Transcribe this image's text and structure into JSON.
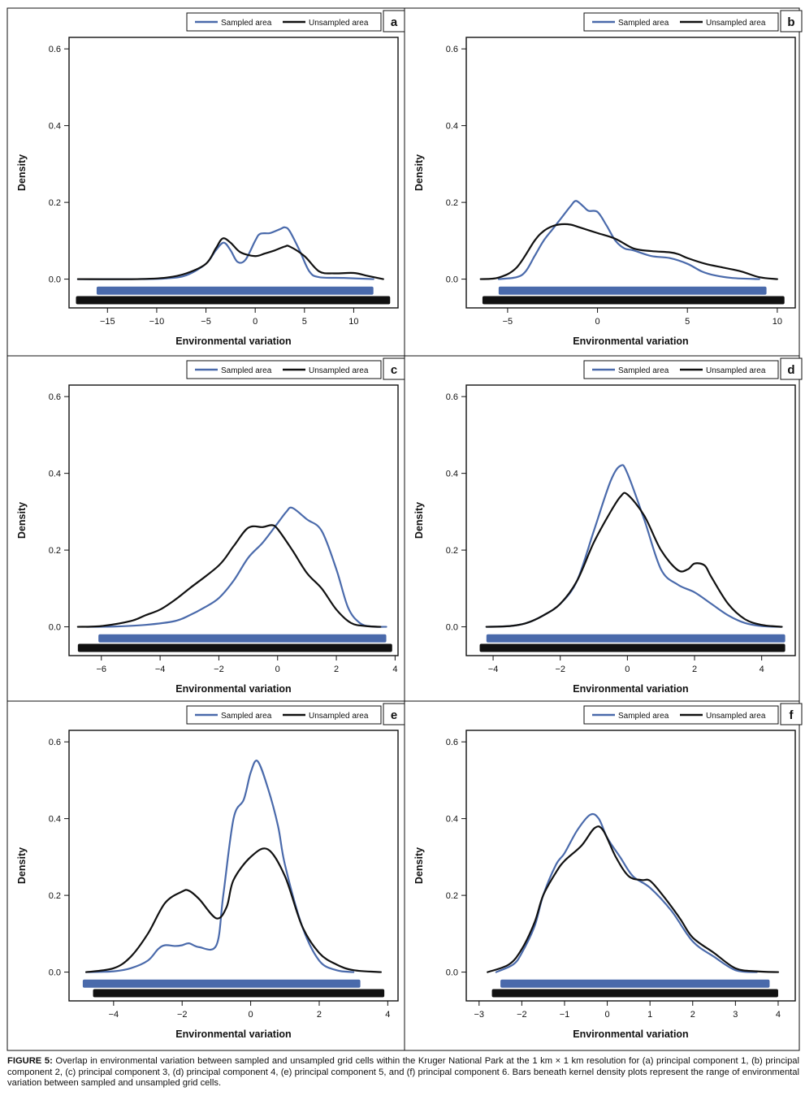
{
  "figure": {
    "caption_label": "FIGURE 5:",
    "caption_text": " Overlap in environmental variation between sampled and unsampled grid cells within the Kruger National Park at the 1 km × 1 km resolution for (a) principal component 1, (b) principal component 2, (c) principal component 3, (d) principal component 4, (e) principal component 5, and (f) principal component 6. Bars beneath kernel density plots represent the range of environmental variation between sampled and unsampled grid cells.",
    "colors": {
      "sampled": "#4a6aab",
      "unsampled": "#111111"
    }
  },
  "chart_data": [
    {
      "type": "line",
      "panel": "a",
      "xlabel": "Environmental variation",
      "ylabel": "Density",
      "xlim": [
        -18.9,
        14.5
      ],
      "ylim": [
        -0.075,
        0.63
      ],
      "xticks": [
        -15,
        -10,
        -5,
        0,
        5,
        10
      ],
      "yticks": [
        0.0,
        0.2,
        0.4,
        0.6
      ],
      "xtick_labels": [
        "−15",
        "−10",
        "−5",
        "0",
        "5",
        "10"
      ],
      "ytick_labels": [
        "0.0",
        "0.2",
        "0.4",
        "0.6"
      ],
      "legend": [
        "Sampled area",
        "Unsampled area"
      ],
      "series": [
        {
          "name": "Sampled area",
          "x": [
            -18,
            -12,
            -9,
            -7,
            -5,
            -4,
            -3.2,
            -2.5,
            -1.8,
            -1,
            0,
            0.5,
            1.5,
            2.5,
            3,
            3.5,
            4.5,
            5.5,
            6.5,
            9,
            12
          ],
          "y": [
            0,
            0,
            0.002,
            0.01,
            0.04,
            0.075,
            0.095,
            0.075,
            0.045,
            0.05,
            0.1,
            0.118,
            0.12,
            0.13,
            0.135,
            0.125,
            0.075,
            0.02,
            0.005,
            0.003,
            0
          ]
        },
        {
          "name": "Unsampled area",
          "x": [
            -18,
            -12,
            -9,
            -7,
            -5,
            -4,
            -3.3,
            -2.5,
            -1.5,
            0,
            1,
            2,
            3,
            3.5,
            5,
            6.5,
            8,
            10,
            11.5,
            13
          ],
          "y": [
            0,
            0,
            0.004,
            0.015,
            0.04,
            0.08,
            0.106,
            0.095,
            0.07,
            0.06,
            0.067,
            0.075,
            0.085,
            0.085,
            0.06,
            0.02,
            0.015,
            0.016,
            0.008,
            0
          ]
        }
      ],
      "ranges": [
        {
          "name": "Sampled area",
          "min": -16.1,
          "max": 12.0
        },
        {
          "name": "Unsampled area",
          "min": -18.2,
          "max": 13.7
        }
      ]
    },
    {
      "type": "line",
      "panel": "b",
      "xlabel": "Environmental variation",
      "ylabel": "Density",
      "xlim": [
        -7.3,
        11.0
      ],
      "ylim": [
        -0.075,
        0.63
      ],
      "xticks": [
        -5,
        0,
        5,
        10
      ],
      "yticks": [
        0.0,
        0.2,
        0.4,
        0.6
      ],
      "xtick_labels": [
        "−5",
        "0",
        "5",
        "10"
      ],
      "ytick_labels": [
        "0.0",
        "0.2",
        "0.4",
        "0.6"
      ],
      "legend": [
        "Sampled area",
        "Unsampled area"
      ],
      "series": [
        {
          "name": "Sampled area",
          "x": [
            -5.5,
            -4.5,
            -4,
            -3.5,
            -3,
            -2.5,
            -2,
            -1.5,
            -1.2,
            -0.8,
            -0.5,
            0,
            0.5,
            1,
            1.5,
            2,
            3,
            4,
            5,
            5.8,
            6.5,
            7.5,
            9
          ],
          "y": [
            0,
            0.005,
            0.02,
            0.06,
            0.1,
            0.13,
            0.16,
            0.19,
            0.204,
            0.19,
            0.178,
            0.175,
            0.14,
            0.1,
            0.08,
            0.075,
            0.06,
            0.055,
            0.04,
            0.02,
            0.01,
            0.003,
            0
          ]
        },
        {
          "name": "Unsampled area",
          "x": [
            -6.5,
            -5.5,
            -4.5,
            -3.5,
            -3,
            -2.5,
            -2,
            -1.5,
            -1,
            0,
            1,
            2,
            3,
            4,
            4.5,
            5,
            6,
            7,
            8,
            9,
            10
          ],
          "y": [
            0,
            0.004,
            0.03,
            0.1,
            0.125,
            0.138,
            0.143,
            0.142,
            0.135,
            0.12,
            0.105,
            0.08,
            0.073,
            0.07,
            0.065,
            0.055,
            0.04,
            0.03,
            0.02,
            0.005,
            0
          ]
        }
      ],
      "ranges": [
        {
          "name": "Sampled area",
          "min": -5.5,
          "max": 9.4
        },
        {
          "name": "Unsampled area",
          "min": -6.4,
          "max": 10.4
        }
      ]
    },
    {
      "type": "line",
      "panel": "c",
      "xlabel": "Environmental variation",
      "ylabel": "Density",
      "xlim": [
        -7.1,
        4.1
      ],
      "ylim": [
        -0.075,
        0.63
      ],
      "xticks": [
        -6,
        -4,
        -2,
        0,
        2,
        4
      ],
      "yticks": [
        0.0,
        0.2,
        0.4,
        0.6
      ],
      "xtick_labels": [
        "−6",
        "−4",
        "−2",
        "0",
        "2",
        "4"
      ],
      "ytick_labels": [
        "0.0",
        "0.2",
        "0.4",
        "0.6"
      ],
      "legend": [
        "Sampled area",
        "Unsampled area"
      ],
      "series": [
        {
          "name": "Sampled area",
          "x": [
            -6.5,
            -5.5,
            -4.5,
            -3.5,
            -3,
            -2.5,
            -2,
            -1.5,
            -1,
            -0.5,
            0,
            0.3,
            0.5,
            1,
            1.5,
            2,
            2.4,
            2.8,
            3.2,
            3.7
          ],
          "y": [
            0,
            0.001,
            0.005,
            0.015,
            0.03,
            0.05,
            0.075,
            0.12,
            0.18,
            0.22,
            0.27,
            0.3,
            0.31,
            0.28,
            0.25,
            0.15,
            0.05,
            0.01,
            0.001,
            0
          ]
        },
        {
          "name": "Unsampled area",
          "x": [
            -6.8,
            -6,
            -5,
            -4.5,
            -4,
            -3.5,
            -3,
            -2,
            -1.5,
            -1,
            -0.5,
            -0.2,
            0,
            0.5,
            1,
            1.5,
            2,
            2.5,
            3,
            3.5
          ],
          "y": [
            0,
            0.002,
            0.015,
            0.03,
            0.045,
            0.07,
            0.1,
            0.16,
            0.21,
            0.258,
            0.26,
            0.265,
            0.255,
            0.2,
            0.14,
            0.1,
            0.045,
            0.01,
            0.002,
            0
          ]
        }
      ],
      "ranges": [
        {
          "name": "Sampled area",
          "min": -6.1,
          "max": 3.7
        },
        {
          "name": "Unsampled area",
          "min": -6.8,
          "max": 3.9
        }
      ]
    },
    {
      "type": "line",
      "panel": "d",
      "xlabel": "Environmental variation",
      "ylabel": "Density",
      "xlim": [
        -4.8,
        5.0
      ],
      "ylim": [
        -0.075,
        0.63
      ],
      "xticks": [
        -4,
        -2,
        0,
        2,
        4
      ],
      "yticks": [
        0.0,
        0.2,
        0.4,
        0.6
      ],
      "xtick_labels": [
        "−4",
        "−2",
        "0",
        "2",
        "4"
      ],
      "ytick_labels": [
        "0.0",
        "0.2",
        "0.4",
        "0.6"
      ],
      "legend": [
        "Sampled area",
        "Unsampled area"
      ],
      "series": [
        {
          "name": "Sampled area",
          "x": [
            -4.2,
            -3.5,
            -3,
            -2.5,
            -2,
            -1.5,
            -1,
            -0.5,
            -0.2,
            0,
            0.5,
            1,
            1.5,
            2,
            2.5,
            3,
            3.5,
            4,
            4.6
          ],
          "y": [
            0,
            0.002,
            0.01,
            0.03,
            0.06,
            0.12,
            0.25,
            0.38,
            0.42,
            0.4,
            0.28,
            0.15,
            0.11,
            0.09,
            0.06,
            0.03,
            0.01,
            0.002,
            0
          ]
        },
        {
          "name": "Unsampled area",
          "x": [
            -4.2,
            -3.5,
            -3,
            -2.5,
            -2,
            -1.5,
            -1,
            -0.5,
            -0.2,
            0,
            0.5,
            1,
            1.5,
            1.8,
            2,
            2.3,
            2.5,
            3,
            3.5,
            4,
            4.6
          ],
          "y": [
            0,
            0.002,
            0.01,
            0.03,
            0.06,
            0.12,
            0.22,
            0.3,
            0.34,
            0.345,
            0.29,
            0.2,
            0.148,
            0.15,
            0.165,
            0.16,
            0.13,
            0.06,
            0.02,
            0.005,
            0
          ]
        }
      ],
      "ranges": [
        {
          "name": "Sampled area",
          "min": -4.2,
          "max": 4.7
        },
        {
          "name": "Unsampled area",
          "min": -4.4,
          "max": 4.7
        }
      ]
    },
    {
      "type": "line",
      "panel": "e",
      "xlabel": "Environmental variation",
      "ylabel": "Density",
      "xlim": [
        -5.3,
        4.3
      ],
      "ylim": [
        -0.075,
        0.63
      ],
      "xticks": [
        -4,
        -2,
        0,
        2,
        4
      ],
      "yticks": [
        0.0,
        0.2,
        0.4,
        0.6
      ],
      "xtick_labels": [
        "−4",
        "−2",
        "0",
        "2",
        "4"
      ],
      "ytick_labels": [
        "0.0",
        "0.2",
        "0.4",
        "0.6"
      ],
      "legend": [
        "Sampled area",
        "Unsampled area"
      ],
      "series": [
        {
          "name": "Sampled area",
          "x": [
            -4.8,
            -4,
            -3.5,
            -3,
            -2.7,
            -2.5,
            -2.2,
            -2,
            -1.8,
            -1.5,
            -1,
            -0.8,
            -0.5,
            -0.2,
            0,
            0.2,
            0.5,
            0.8,
            1,
            1.5,
            2,
            2.5,
            3
          ],
          "y": [
            0,
            0.002,
            0.01,
            0.03,
            0.06,
            0.07,
            0.068,
            0.07,
            0.075,
            0.065,
            0.07,
            0.2,
            0.4,
            0.45,
            0.52,
            0.55,
            0.48,
            0.38,
            0.28,
            0.12,
            0.03,
            0.005,
            0
          ]
        },
        {
          "name": "Unsampled area",
          "x": [
            -4.8,
            -4,
            -3.5,
            -3,
            -2.5,
            -2,
            -1.8,
            -1.5,
            -1,
            -0.7,
            -0.5,
            0,
            0.5,
            1,
            1.5,
            2,
            2.5,
            3,
            3.8
          ],
          "y": [
            0,
            0.01,
            0.04,
            0.1,
            0.18,
            0.21,
            0.212,
            0.19,
            0.14,
            0.17,
            0.24,
            0.3,
            0.32,
            0.25,
            0.12,
            0.05,
            0.02,
            0.005,
            0
          ]
        }
      ],
      "ranges": [
        {
          "name": "Sampled area",
          "min": -4.9,
          "max": 3.2
        },
        {
          "name": "Unsampled area",
          "min": -4.6,
          "max": 3.9
        }
      ]
    },
    {
      "type": "line",
      "panel": "f",
      "xlabel": "Environmental variation",
      "ylabel": "Density",
      "xlim": [
        -3.3,
        4.4
      ],
      "ylim": [
        -0.075,
        0.63
      ],
      "xticks": [
        -3,
        -2,
        -1,
        0,
        1,
        2,
        3,
        4
      ],
      "yticks": [
        0.0,
        0.2,
        0.4,
        0.6
      ],
      "xtick_labels": [
        "−3",
        "−2",
        "−1",
        "0",
        "1",
        "2",
        "3",
        "4"
      ],
      "ytick_labels": [
        "0.0",
        "0.2",
        "0.4",
        "0.6"
      ],
      "legend": [
        "Sampled area",
        "Unsampled area"
      ],
      "series": [
        {
          "name": "Sampled area",
          "x": [
            -2.6,
            -2.2,
            -2,
            -1.7,
            -1.5,
            -1.2,
            -1,
            -0.7,
            -0.4,
            -0.2,
            0,
            0.3,
            0.6,
            1,
            1.5,
            2,
            2.5,
            3,
            3.5
          ],
          "y": [
            0,
            0.02,
            0.05,
            0.12,
            0.2,
            0.28,
            0.31,
            0.37,
            0.41,
            0.4,
            0.35,
            0.3,
            0.25,
            0.22,
            0.16,
            0.08,
            0.04,
            0.005,
            0
          ]
        },
        {
          "name": "Unsampled area",
          "x": [
            -2.8,
            -2.3,
            -2,
            -1.7,
            -1.5,
            -1.2,
            -1,
            -0.6,
            -0.3,
            -0.1,
            0.2,
            0.5,
            0.8,
            1,
            1.3,
            1.7,
            2,
            2.5,
            3,
            3.5,
            4
          ],
          "y": [
            0,
            0.02,
            0.06,
            0.13,
            0.2,
            0.26,
            0.29,
            0.33,
            0.375,
            0.37,
            0.3,
            0.25,
            0.24,
            0.238,
            0.2,
            0.14,
            0.09,
            0.05,
            0.01,
            0.002,
            0
          ]
        }
      ],
      "ranges": [
        {
          "name": "Sampled area",
          "min": -2.5,
          "max": 3.8
        },
        {
          "name": "Unsampled area",
          "min": -2.7,
          "max": 4.0
        }
      ]
    }
  ]
}
